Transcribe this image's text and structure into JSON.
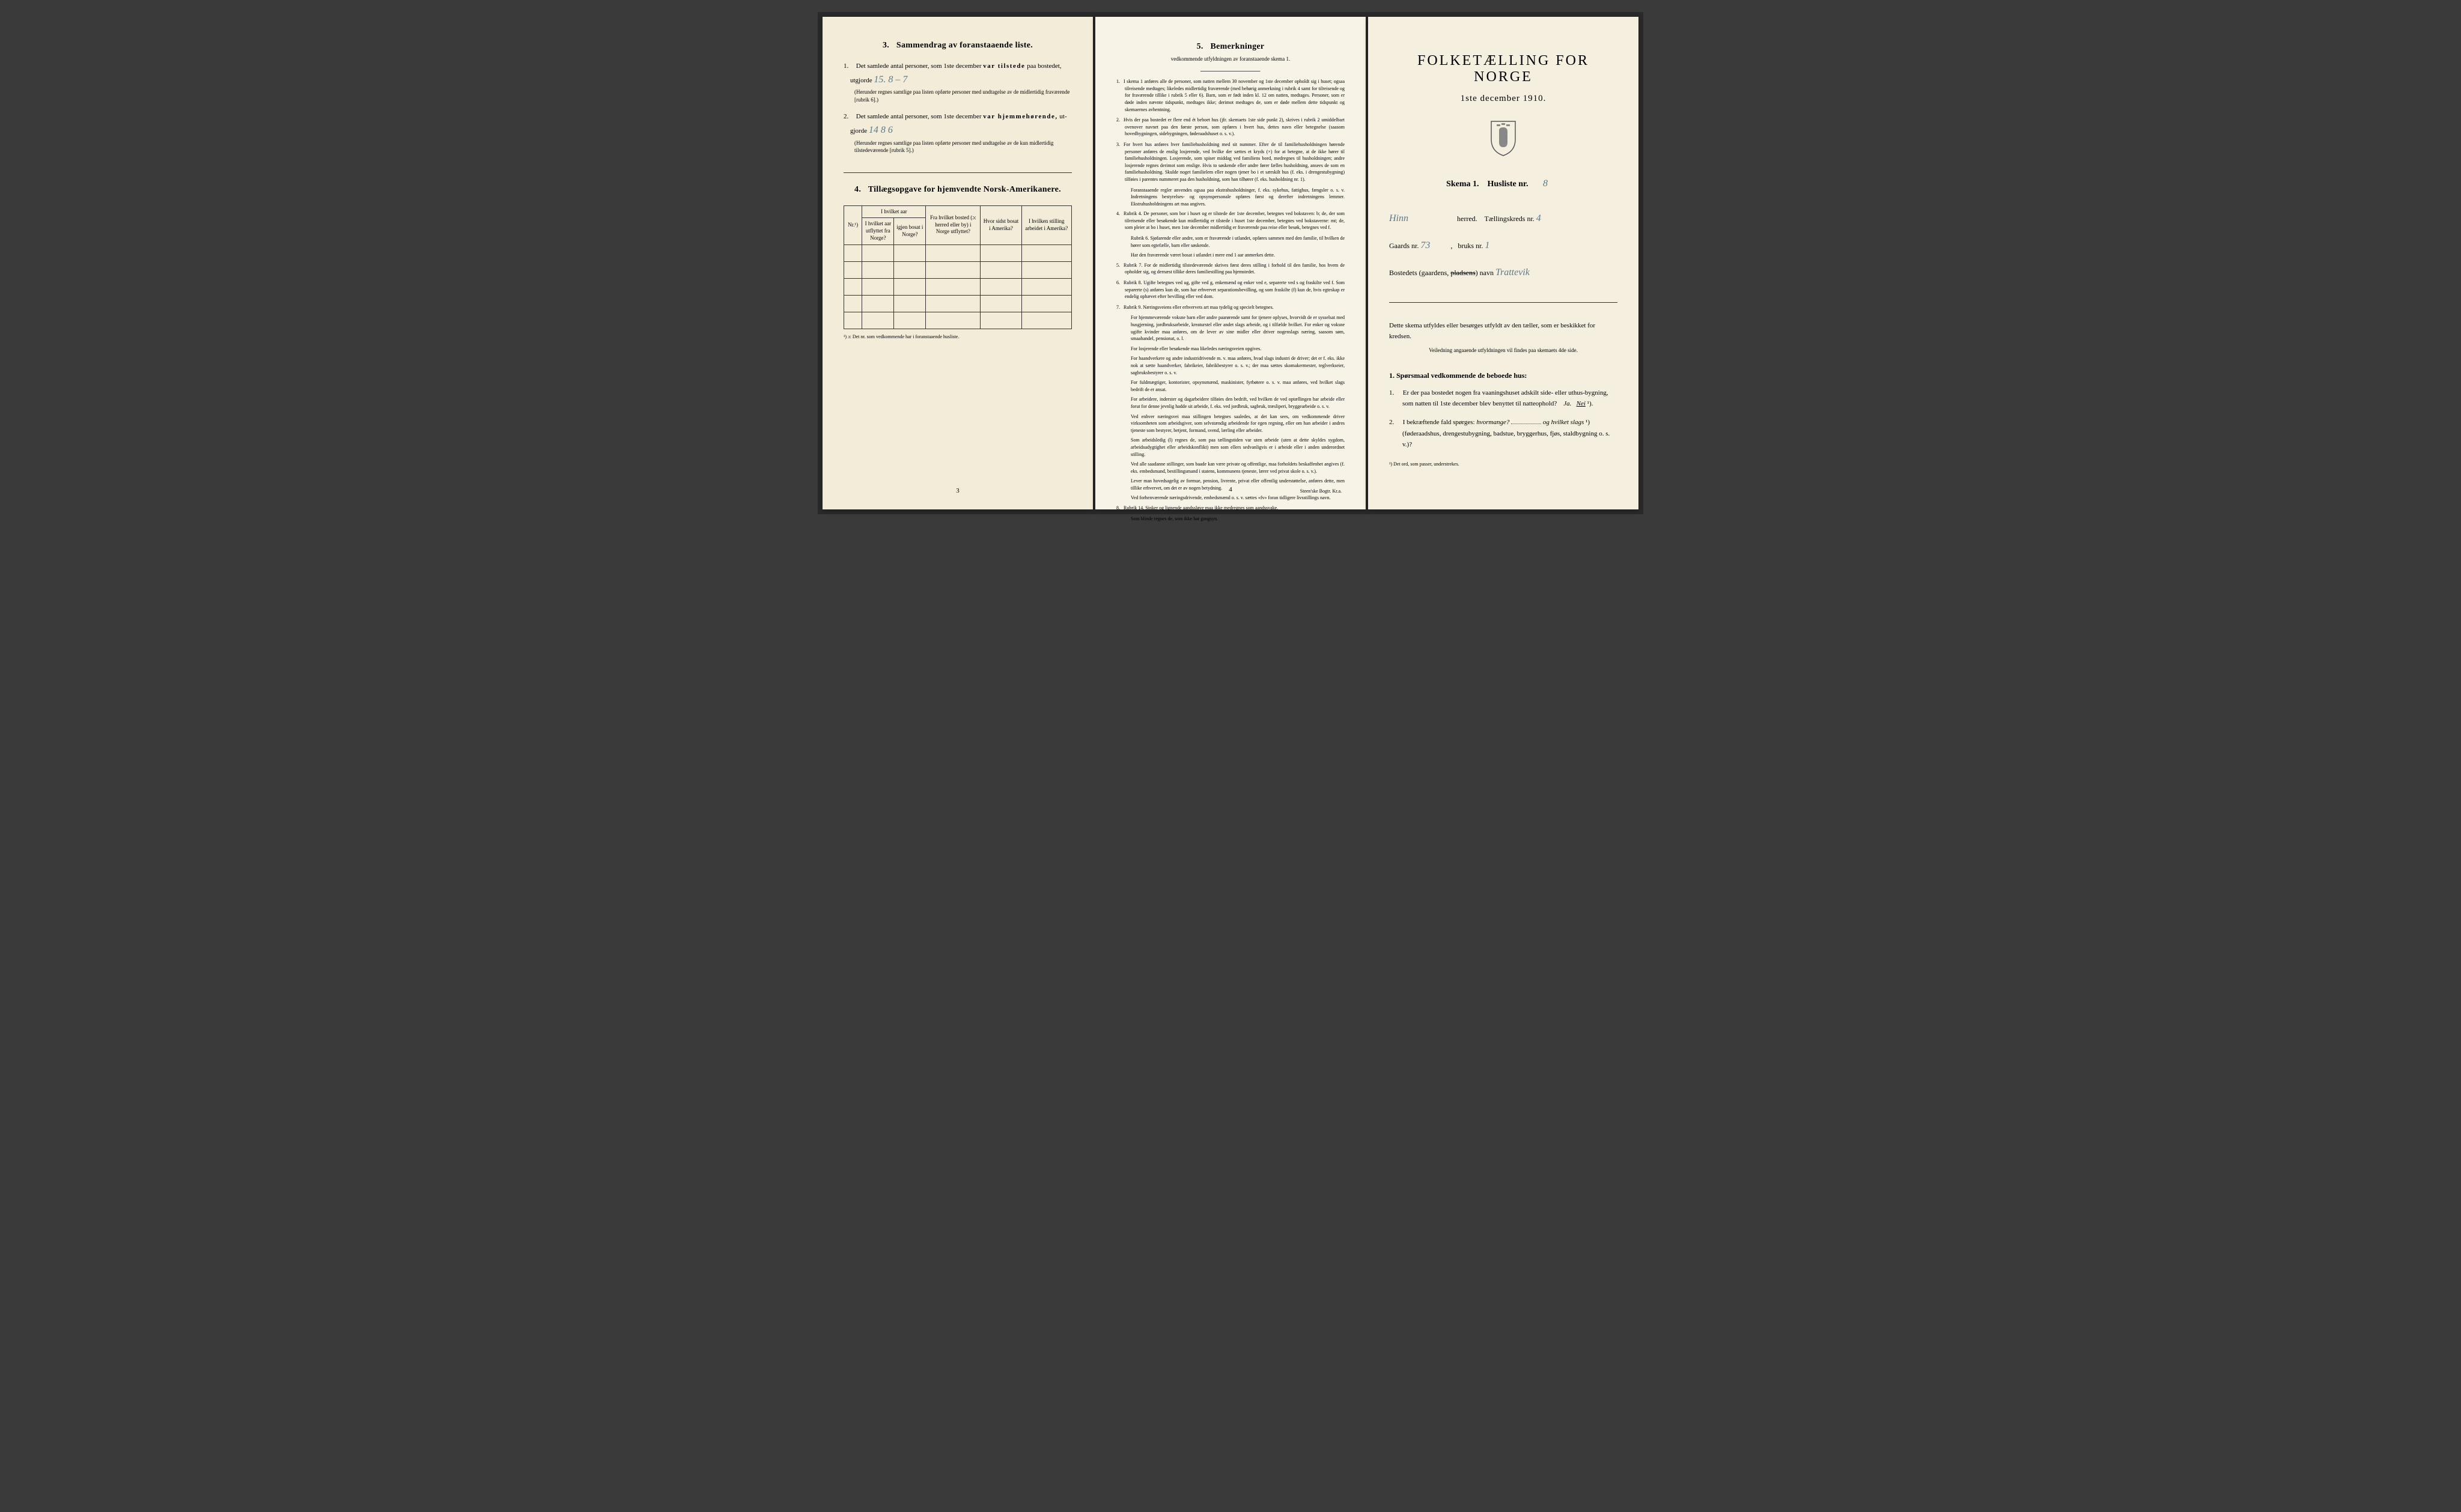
{
  "colors": {
    "paper1": "#f2ecd8",
    "paper2": "#f7f3e6",
    "paper3": "#f5efe0",
    "ink": "#1a1a1a",
    "handwriting": "#5a7a8a",
    "background": "#3a3a3a"
  },
  "page1": {
    "section3": {
      "num": "3.",
      "title": "Sammendrag av foranstaaende liste.",
      "item1": {
        "num": "1.",
        "text_a": "Det samlede antal personer, som 1ste december",
        "text_b": "var tilstede",
        "text_c": "paa bostedet,",
        "text_d": "utgjorde",
        "value": "15.  8 – 7",
        "note": "(Herunder regnes samtlige paa listen opførte personer med undtagelse av de midlertidig fraværende [rubrik 6].)"
      },
      "item2": {
        "num": "2.",
        "text_a": "Det samlede antal personer, som 1ste december",
        "text_b": "var hjemmehørende,",
        "text_c": "ut-",
        "text_d": "gjorde",
        "value": "14   8  6",
        "note": "(Herunder regnes samtlige paa listen opførte personer med undtagelse av de kun midlertidig tilstedeværende [rubrik 5].)"
      }
    },
    "section4": {
      "num": "4.",
      "title": "Tillægsopgave for hjemvendte Norsk-Amerikanere.",
      "headers": {
        "c1": "Nr.¹)",
        "c2": "I hvilket aar utflyttet fra Norge?",
        "c3": "igjen bosat i Norge?",
        "c4": "Fra hvilket bosted (ɔ: herred eller by) i Norge utflyttet?",
        "c5": "Hvor sidst bosat i Amerika?",
        "c6": "I hvilken stilling arbeidet i Amerika?"
      },
      "footnote": "¹) ɔ: Det nr. som vedkommende har i foranstaaende husliste."
    },
    "pagenum": "3"
  },
  "page2": {
    "section5": {
      "num": "5.",
      "title": "Bemerkninger",
      "subtitle": "vedkommende utfyldningen av foranstaaende skema 1."
    },
    "remarks": [
      {
        "n": "1.",
        "t": "I skema 1 anføres alle de personer, som natten mellem 30 november og 1ste december opholdt sig i huset; ogsaa tilreisende medtages; likeledes midlertidig fraværende (med behørig anmerkning i rubrik 4 samt for tilreisende og for fraværende tillike i rubrik 5 eller 6). Barn, som er født inden kl. 12 om natten, medtages. Personer, som er døde inden nævnte tidspunkt, medtages ikke; derimot medtages de, som er døde mellem dette tidspunkt og skemaernes avhentning."
      },
      {
        "n": "2.",
        "t": "Hvis der paa bostedet er flere end ét beboet hus (jfr. skemaets 1ste side punkt 2), skrives i rubrik 2 umiddelbart ovenover navnet paa den første person, som opføres i hvert hus, dettes navn eller betegnelse (saasom hovedbygningen, sidebygningen, føderaadshuset o. s. v.)."
      },
      {
        "n": "3.",
        "t": "For hvert hus anføres hver familiehusholdning med sit nummer. Efter de til familiehusholdningen hørende personer anføres de enslig losjerende, ved hvilke der sættes et kryds (×) for at betegne, at de ikke hører til familiehusholdningen. Losjerende, som spiser middag ved familiens bord, medregnes til husholdningen; andre losjerende regnes derimot som enslige. Hvis to søskende eller andre fører fælles husholdning, ansees de som en familiehusholdning. Skulde noget familielem eller nogen tjener bo i et særskilt hus (f. eks. i drengestubygning) tilføies i parentes nummeret paa den husholdning, som han tilhører (f. eks. husholdning nr. 1)."
      },
      {
        "n": "",
        "t": "Foranstaaende regler anvendes ogsaa paa ekstrahusholdninger, f. eks. sykehus, fattighus, fængsler o. s. v. Indretningens bestyrelses- og opsynspersonale opføres først og derefter indretningens lemmer. Ekstrahusholdningens art maa angives."
      },
      {
        "n": "4.",
        "t": "Rubrik 4. De personer, som bor i huset og er tilstede der 1ste december, betegnes ved bokstaven: b; de, der som tilreisende eller besøkende kun midlertidig er tilstede i huset 1ste december, betegnes ved bokstaverne: mt; de, som pleier at bo i huset, men 1ste december midlertidig er fraværende paa reise eller besøk, betegnes ved f."
      },
      {
        "n": "",
        "t": "Rubrik 6. Sjøfarende eller andre, som er fraværende i utlandet, opføres sammen med den familie, til hvilken de hører som egtefælle, barn eller søskende."
      },
      {
        "n": "",
        "t": "Har den fraværende været bosat i utlandet i mere end 1 aar anmerkes dette."
      },
      {
        "n": "5.",
        "t": "Rubrik 7. For de midlertidig tilstedeværende skrives først deres stilling i forhold til den familie, hos hvem de opholder sig, og dernæst tillike deres familiestilling paa hjemstedet."
      },
      {
        "n": "6.",
        "t": "Rubrik 8. Ugifte betegnes ved ug, gifte ved g, enkemænd og enker ved e, separerte ved s og fraskilte ved f. Som separerte (s) anføres kun de, som har erhvervet separationsbevilling, og som fraskilte (f) kun de, hvis egteskap er endelig ophævet efter bevilling eller ved dom."
      },
      {
        "n": "7.",
        "t": "Rubrik 9. Næringsveiens eller erhvervets art maa tydelig og specielt betegnes."
      },
      {
        "n": "",
        "t": "For hjemmeværende voksne barn eller andre paarørende samt for tjenere oplyses, hvorvidt de er sysselsat med husgjerning, jordbruksarbeide, kreaturstel eller andet slags arbeide, og i tilfælde hvilket. For enker og voksne ugifte kvinder maa anføres, om de lever av sine midler eller driver nogenslags næring, saasom søm, smaahandel, pensionat, o. l."
      },
      {
        "n": "",
        "t": "For losjerende eller besøkende maa likeledes næringsveien opgives."
      },
      {
        "n": "",
        "t": "For haandverkere og andre industridrivende m. v. maa anføres, hvad slags industri de driver; det er f. eks. ikke nok at sætte haandverker, fabrikeier, fabrikbestyrer o. s. v.; der maa sættes skomakermester, teglverkseier, sagbruksbestyrer o. s. v."
      },
      {
        "n": "",
        "t": "For fuldmægtiger, kontorister, opsynsmænd, maskinister, fyrbøtere o. s. v. maa anføres, ved hvilket slags bedrift de er ansat."
      },
      {
        "n": "",
        "t": "For arbeidere, inderster og dagarbeidere tilføies den bedrift, ved hvilken de ved optællingen har arbeide eller forut for denne jevnlig hadde sit arbeide, f. eks. ved jordbruk, sagbruk, træsliperi, bryggearbeide o. s. v."
      },
      {
        "n": "",
        "t": "Ved enhver næringsvei maa stillingen betegnes saaledes, at det kan sees, om vedkommende driver virksomheten som arbeidsgiver, som selvstændig arbeidende for egen regning, eller om han arbeider i andres tjeneste som bestyrer, betjent, formand, svend, lærling eller arbeider."
      },
      {
        "n": "",
        "t": "Som arbeidsledig (l) regnes de, som paa tællingstiden var uten arbeide (uten at dette skyldes sygdom, arbeidsudygtighet eller arbeidskonflikt) men som ellers sedvanligvis er i arbeide eller i anden underordnet stilling."
      },
      {
        "n": "",
        "t": "Ved alle saadanne stillinger, som baade kan være private og offentlige, maa forholdets beskaffenhet angives (f. eks. embedsmand, bestillingsmand i statens, kommunens tjeneste, lærer ved privat skole o. s. v.)."
      },
      {
        "n": "",
        "t": "Lever man hovedsagelig av formue, pension, livrente, privat eller offentlig understøttelse, anføres dette, men tillike erhvervet, om det er av nogen betydning."
      },
      {
        "n": "",
        "t": "Ved forhenværende næringsdrivende, embedsmænd o. s. v. sættes «fv» foran tidligere livsstillings navn."
      },
      {
        "n": "8.",
        "t": "Rubrik 14. Sinker og lignende aandssløve maa ikke medregnes som aandssvake."
      },
      {
        "n": "",
        "t": "Som blinde regnes de, som ikke har gangsyn."
      }
    ],
    "pagenum": "4",
    "printer": "Steen'ske Bogtr. Kr.a."
  },
  "page3": {
    "main_title": "FOLKETÆLLING FOR NORGE",
    "date": "1ste december 1910.",
    "skema_label": "Skema 1.",
    "husliste_label": "Husliste nr.",
    "husliste_nr": "8",
    "herred_value": "Hinn",
    "herred_label": "herred.",
    "kreds_label": "Tællingskreds nr.",
    "kreds_nr": "4",
    "gaards_label": "Gaards nr.",
    "gaards_nr": "73",
    "bruks_label": "bruks nr.",
    "bruks_nr": "1",
    "bosted_label": "Bostedets (gaardens,",
    "pladsens": "pladsens",
    "navn_label": ") navn",
    "bosted_value": "Trattevik",
    "instruct": "Dette skema utfyldes eller besørges utfyldt av den tæller, som er beskikket for kredsen.",
    "instruct_sub": "Veiledning angaaende utfyldningen vil findes paa skemaets 4de side.",
    "q_section": {
      "num": "1.",
      "title": "Spørsmaal vedkommende de beboede hus:",
      "q1": {
        "num": "1.",
        "text": "Er der paa bostedet nogen fra vaaningshuset adskilt side- eller uthus-bygning, som natten til 1ste december blev benyttet til natteophold?",
        "ja": "Ja.",
        "nei": "Nei",
        "sup": "¹)."
      },
      "q2": {
        "num": "2.",
        "text_a": "I bekræftende fald spørges:",
        "text_b": "hvormange?",
        "text_c": "og hvilket slags",
        "sup": "¹)",
        "text_d": "(føderaadshus, drengestubygning, badstue, bryggerhus, fjøs, staldbygning o. s. v.)?"
      }
    },
    "footnote": "¹) Det ord, som passer, understrekes."
  }
}
